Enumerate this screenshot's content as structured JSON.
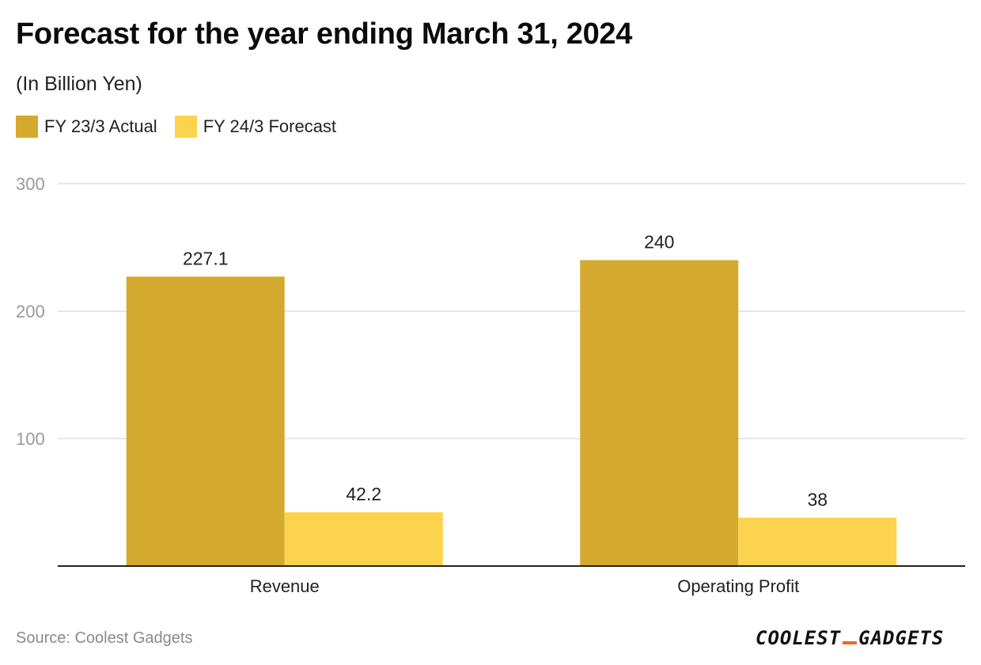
{
  "title": "Forecast for the year ending March 31, 2024",
  "subtitle": "(In Billion Yen)",
  "legend": [
    {
      "label": "FY 23/3 Actual",
      "color": "#D4AA2E"
    },
    {
      "label": "FY 24/3 Forecast",
      "color": "#FCD34D"
    }
  ],
  "source": "Source: Coolest Gadgets",
  "logo": {
    "part1": "COOLEST",
    "part2": "GADGETS"
  },
  "chart_data": {
    "type": "bar",
    "categories": [
      "Revenue",
      "Operating Profit"
    ],
    "series": [
      {
        "name": "FY 23/3 Actual",
        "values": [
          227.1,
          240
        ],
        "labels": [
          "227.1",
          "240"
        ],
        "color": "#D4AA2E"
      },
      {
        "name": "FY 24/3 Forecast",
        "values": [
          42.2,
          38
        ],
        "labels": [
          "42.2",
          "38"
        ],
        "color": "#FCD34D"
      }
    ],
    "ylim": [
      0,
      300
    ],
    "yticks": [
      100,
      200,
      300
    ],
    "ytick_labels": [
      "100",
      "200",
      "300"
    ],
    "grid": true,
    "legend_position": "top-left"
  }
}
